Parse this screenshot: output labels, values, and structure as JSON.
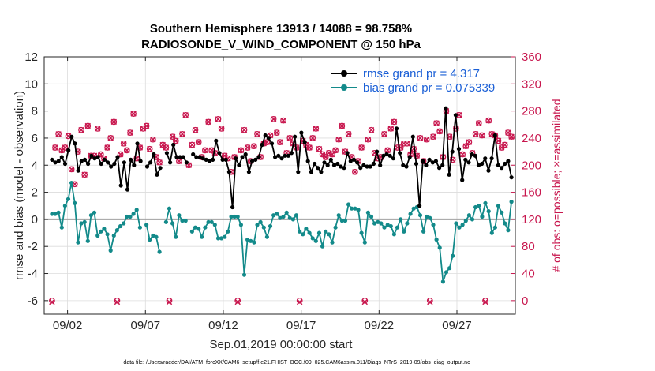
{
  "chart_data": {
    "type": "line",
    "title": "Southern Hemisphere 13913 / 14088 = 98.758%",
    "subtitle": "RADIOSONDE_V_WIND_COMPONENT @ 150 hPa",
    "xlabel": "Sep.01,2019 00:00:00 start",
    "ylabel": "rmse and bias (model - observation)",
    "ylabel_right": "# of obs: o=possible; ×=assimilated",
    "footnote": "data file: /Users/raeder/DAI/ATM_forcXX/CAM6_setup/f.e21.FHIST_BGC.f09_025.CAM6assim.011/Diags_NTrS_2019-09/obs_diag_output.nc",
    "xlim": [
      0.5,
      30.75
    ],
    "ylim": [
      -7,
      12
    ],
    "ylim_right": [
      -20,
      360
    ],
    "x_ticks": [
      2,
      7,
      12,
      17,
      22,
      27
    ],
    "x_tick_labels": [
      "09/02",
      "09/07",
      "09/12",
      "09/17",
      "09/22",
      "09/27"
    ],
    "y_ticks": [
      -6,
      -4,
      -2,
      0,
      2,
      4,
      6,
      8,
      10,
      12
    ],
    "y_tick_labels": [
      "-6",
      "-4",
      "-2",
      "0",
      "2",
      "4",
      "6",
      "8",
      "10",
      "12"
    ],
    "y_right_ticks": [
      0,
      40,
      80,
      120,
      160,
      200,
      240,
      280,
      320,
      360
    ],
    "y_right_tick_labels": [
      "0",
      "40",
      "80",
      "120",
      "160",
      "200",
      "240",
      "280",
      "320",
      "360"
    ],
    "legend_position": "top-right",
    "grid": true,
    "colors": {
      "rmse": "#000000",
      "bias": "#138a8a",
      "obs": "#c8174e",
      "zero_line": "#a0a0a0",
      "legend_text": "#1a5fd6"
    },
    "series": [
      {
        "name": "rmse grand pr = 4.317",
        "axis": "left",
        "color": "#000000",
        "values": [
          4.4,
          4.2,
          4.3,
          4.6,
          4.1,
          5.1,
          6.1,
          5.6,
          3.6,
          4.3,
          4.4,
          4.1,
          4.7,
          4.5,
          4.6,
          4.1,
          4.4,
          4.2,
          3.9,
          4.1,
          4.6,
          2.5,
          4.2,
          2.2,
          4.4,
          4.0,
          5.6,
          4.3,
          null,
          3.9,
          4.2,
          4.8,
          3.3,
          3.8,
          null,
          4.9,
          4.2,
          5.5,
          4.6,
          4.6,
          4.6,
          4.2,
          null,
          4.8,
          4.6,
          4.6,
          4.5,
          4.4,
          4.3,
          4.4,
          5.8,
          4.9,
          4.4,
          4.4,
          3.5,
          0.9,
          4.5,
          4.0,
          4.6,
          4.8,
          3.5,
          4.3,
          4.4,
          4.6,
          5.5,
          6.2,
          6.0,
          5.6,
          4.6,
          4.7,
          4.5,
          4.7,
          4.7,
          4.9,
          6.1,
          3.5,
          6.4,
          5.7,
          4.3,
          3.5,
          4.1,
          3.8,
          3.5,
          4.2,
          4.0,
          4.4,
          4.0,
          4.1,
          3.9,
          3.8,
          4.9,
          4.3,
          4.4,
          4.2,
          3.8,
          4.0,
          3.9,
          3.9,
          4.1,
          5.0,
          4.0,
          4.7,
          4.8,
          4.7,
          4.5,
          6.7,
          4.9,
          4.0,
          3.9,
          4.6,
          6.1,
          4.1,
          1.0,
          4.3,
          4.0,
          4.4,
          4.2,
          4.3,
          3.8,
          4.0,
          8.2,
          3.3,
          5.0,
          7.7,
          5.2,
          2.9,
          4.4,
          4.2,
          4.8,
          4.7,
          4.0,
          4.1,
          4.5,
          3.6,
          4.5,
          6.2,
          4.0,
          3.8,
          4.1,
          4.3,
          3.1
        ]
      },
      {
        "name": "bias grand pr = 0.075339",
        "axis": "left",
        "color": "#138a8a",
        "values": [
          0.4,
          0.4,
          0.5,
          -0.6,
          1.0,
          1.5,
          2.7,
          1.2,
          -1.7,
          -0.3,
          -0.2,
          -1.6,
          0.3,
          0.5,
          -1.2,
          -0.9,
          -0.7,
          -1.1,
          -2.3,
          -1.2,
          -0.8,
          -0.5,
          -0.3,
          0.2,
          0.2,
          0.4,
          0.7,
          -0.6,
          null,
          -0.4,
          -1.5,
          -1.2,
          -1.3,
          -2.4,
          null,
          -0.2,
          0.8,
          -0.3,
          -1.3,
          0.3,
          -0.1,
          -0.1,
          null,
          -0.9,
          -0.6,
          -0.7,
          -1.3,
          -0.6,
          -0.2,
          -0.2,
          -0.4,
          -1.4,
          -1.4,
          -1.3,
          -0.9,
          0.2,
          0.2,
          0.2,
          -0.4,
          -4.1,
          -1.5,
          -1.6,
          -1.7,
          -0.4,
          -0.2,
          -0.6,
          -1.3,
          -0.5,
          0.3,
          0.4,
          0.1,
          0.2,
          0.5,
          0.1,
          0.0,
          0.3,
          -0.9,
          -1.1,
          -0.7,
          -1.0,
          -1.4,
          -1.6,
          -1.0,
          -2.0,
          -0.9,
          -1.1,
          -1.7,
          -0.6,
          0.3,
          -0.1,
          -0.1,
          1.1,
          0.8,
          0.8,
          0.7,
          -1.0,
          -1.7,
          0.5,
          0.2,
          -0.3,
          -0.2,
          -0.3,
          -0.6,
          -0.4,
          -0.5,
          -1.1,
          -0.6,
          0.0,
          -0.9,
          -0.3,
          0.4,
          0.8,
          0.9,
          0.3,
          -0.9,
          0.2,
          0.1,
          -0.4,
          -1.5,
          -2.1,
          -4.6,
          -3.9,
          -3.6,
          -2.7,
          -0.3,
          -0.6,
          -0.4,
          -0.1,
          0.3,
          0.0,
          0.9,
          1.0,
          0.2,
          1.2,
          0.6,
          -1.0,
          -0.6,
          1.0,
          0.5,
          -0.3,
          -0.8,
          1.3
        ]
      },
      {
        "name": "# of obs possible",
        "axis": "right",
        "marker": "o",
        "color": "#c8174e",
        "values": [
          0,
          226,
          246,
          222,
          226,
          243,
          194,
          172,
          220,
          252,
          186,
          258,
          214,
          214,
          254,
          216,
          210,
          226,
          240,
          264,
          0,
          216,
          232,
          222,
          248,
          276,
          210,
          226,
          254,
          258,
          224,
          238,
          212,
          204,
          230,
          226,
          0,
          242,
          236,
          206,
          246,
          274,
          200,
          230,
          252,
          234,
          212,
          222,
          264,
          222,
          218,
          268,
          254,
          214,
          210,
          190,
          212,
          0,
          222,
          252,
          226,
          206,
          228,
          246,
          212,
          232,
          234,
          244,
          268,
          248,
          234,
          266,
          218,
          240,
          232,
          226,
          0,
          236,
          230,
          226,
          240,
          254,
          224,
          216,
          212,
          218,
          216,
          222,
          238,
          258,
          220,
          246,
          212,
          190,
          206,
          226,
          0,
          238,
          252,
          218,
          210,
          212,
          246,
          222,
          254,
          264,
          226,
          226,
          232,
          232,
          216,
          224,
          214,
          240,
          206,
          238,
          0,
          242,
          262,
          250,
          212,
          280,
          242,
          208,
          254,
          274,
          216,
          228,
          234,
          218,
          246,
          262,
          244,
          0,
          266,
          246,
          244,
          236,
          226,
          230,
          248,
          242
        ]
      },
      {
        "name": "# of obs assimilated",
        "axis": "right",
        "marker": "x",
        "color": "#c8174e",
        "values": [
          -2,
          226,
          246,
          222,
          226,
          243,
          194,
          172,
          220,
          252,
          186,
          258,
          214,
          214,
          254,
          216,
          210,
          226,
          240,
          264,
          -2,
          216,
          232,
          222,
          248,
          276,
          210,
          226,
          254,
          258,
          224,
          238,
          212,
          204,
          230,
          226,
          -2,
          242,
          236,
          206,
          246,
          274,
          200,
          230,
          252,
          234,
          212,
          222,
          264,
          222,
          218,
          268,
          254,
          214,
          210,
          190,
          212,
          -2,
          222,
          252,
          226,
          206,
          228,
          246,
          212,
          232,
          234,
          244,
          268,
          248,
          234,
          266,
          218,
          240,
          232,
          226,
          -2,
          236,
          230,
          226,
          240,
          254,
          224,
          216,
          212,
          218,
          216,
          222,
          238,
          258,
          220,
          246,
          212,
          190,
          206,
          226,
          -2,
          238,
          252,
          218,
          210,
          212,
          246,
          222,
          254,
          264,
          226,
          226,
          232,
          232,
          216,
          224,
          214,
          240,
          206,
          238,
          -2,
          242,
          262,
          250,
          212,
          280,
          242,
          208,
          254,
          274,
          216,
          228,
          234,
          218,
          246,
          262,
          244,
          -2,
          266,
          246,
          244,
          236,
          226,
          230,
          248,
          242
        ]
      }
    ]
  }
}
